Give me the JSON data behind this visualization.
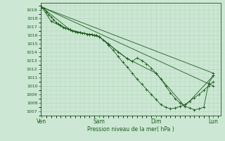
{
  "bg_color": "#cce8d4",
  "grid_color": "#b0d4b8",
  "line_color": "#1a5c1a",
  "marker_color": "#1a5c1a",
  "ylim": [
    1006.5,
    1019.8
  ],
  "yticks": [
    1007,
    1008,
    1009,
    1010,
    1011,
    1012,
    1013,
    1014,
    1015,
    1016,
    1017,
    1018,
    1019
  ],
  "xlabel": "Pression niveau de la mer( hPa )",
  "xtick_labels": [
    "Ven",
    "Sam",
    "Dim",
    "Lun"
  ],
  "xtick_pos": [
    0,
    48,
    96,
    144
  ],
  "xlim": [
    -1,
    150
  ],
  "series": [
    [
      0,
      1019.3,
      2,
      1019.1,
      4,
      1018.7,
      6,
      1018.4,
      8,
      1018.1,
      10,
      1017.8,
      12,
      1017.5,
      14,
      1017.3,
      16,
      1017.1,
      18,
      1016.9,
      20,
      1016.8,
      22,
      1016.7,
      24,
      1016.6,
      26,
      1016.5,
      28,
      1016.4,
      30,
      1016.3,
      32,
      1016.3,
      34,
      1016.2,
      36,
      1016.2,
      38,
      1016.1,
      40,
      1016.1,
      42,
      1016.1,
      44,
      1016.0,
      46,
      1016.0,
      48,
      1015.8,
      52,
      1015.4,
      56,
      1014.8,
      60,
      1014.2,
      64,
      1013.5,
      68,
      1012.8,
      72,
      1012.2,
      76,
      1011.5,
      80,
      1010.8,
      84,
      1010.2,
      88,
      1009.6,
      92,
      1009.0,
      96,
      1008.4,
      100,
      1007.8,
      104,
      1007.5,
      108,
      1007.3,
      112,
      1007.4,
      116,
      1007.6,
      120,
      1007.8,
      124,
      1008.2,
      128,
      1008.6,
      132,
      1009.0,
      136,
      1009.5,
      140,
      1010.0,
      144,
      1010.5
    ],
    [
      0,
      1019.3,
      8,
      1017.6,
      16,
      1017.1,
      24,
      1016.6,
      32,
      1016.3,
      40,
      1016.1,
      48,
      1015.8,
      56,
      1015.0,
      64,
      1014.0,
      72,
      1013.2,
      76,
      1012.9,
      80,
      1013.3,
      84,
      1013.0,
      88,
      1012.6,
      92,
      1012.1,
      96,
      1011.5,
      100,
      1010.8,
      104,
      1010.0,
      108,
      1009.2,
      112,
      1008.5,
      116,
      1008.0,
      120,
      1007.6,
      124,
      1007.4,
      128,
      1007.2,
      132,
      1007.3,
      136,
      1007.5,
      140,
      1010.3,
      144,
      1011.2
    ],
    [
      0,
      1019.3,
      24,
      1016.6,
      48,
      1015.8,
      72,
      1013.2,
      96,
      1011.5,
      120,
      1007.6,
      144,
      1011.2
    ],
    [
      0,
      1019.3,
      144,
      1010.0
    ],
    [
      0,
      1019.3,
      144,
      1011.5
    ]
  ]
}
